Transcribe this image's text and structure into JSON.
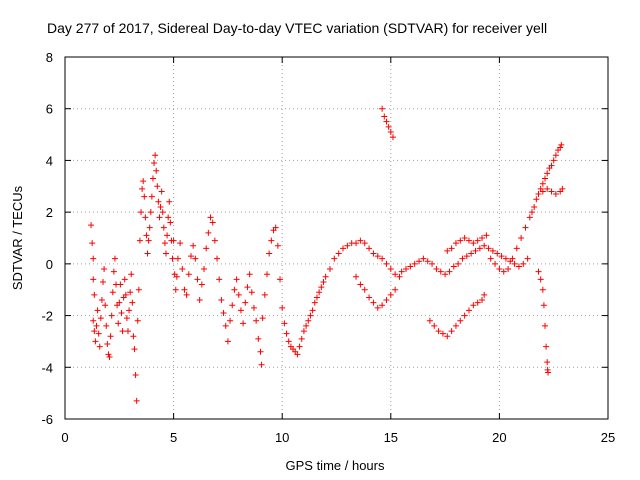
{
  "chart_data": {
    "type": "scatter",
    "title": "Day 277 of 2017, Sidereal Day-to-day VTEC variation (SDTVAR) for receiver yell",
    "xlabel": "GPS time / hours",
    "ylabel": "SDTVAR / TECUs",
    "xlim": [
      0,
      25
    ],
    "ylim": [
      -6,
      8
    ],
    "xticks": [
      0,
      5,
      10,
      15,
      20,
      25
    ],
    "yticks": [
      -6,
      -4,
      -2,
      0,
      2,
      4,
      6,
      8
    ],
    "grid": true,
    "marker": "+",
    "series_color": "#ff0000",
    "series": [
      {
        "name": "SDTVAR",
        "points": [
          [
            1.2,
            1.5
          ],
          [
            1.25,
            0.8
          ],
          [
            1.3,
            0.2
          ],
          [
            1.3,
            -0.6
          ],
          [
            1.35,
            -1.2
          ],
          [
            1.3,
            -2.2
          ],
          [
            1.35,
            -2.6
          ],
          [
            1.4,
            -3.0
          ],
          [
            1.45,
            -2.4
          ],
          [
            1.5,
            -1.8
          ],
          [
            1.55,
            -2.7
          ],
          [
            1.6,
            -3.2
          ],
          [
            1.65,
            -2.1
          ],
          [
            1.7,
            -1.4
          ],
          [
            1.75,
            -0.7
          ],
          [
            1.8,
            -0.2
          ],
          [
            1.85,
            -1.6
          ],
          [
            1.9,
            -2.4
          ],
          [
            1.95,
            -3.1
          ],
          [
            2.0,
            -3.5
          ],
          [
            2.05,
            -3.6
          ],
          [
            2.1,
            -2.8
          ],
          [
            2.15,
            -2.0
          ],
          [
            2.2,
            -1.1
          ],
          [
            2.25,
            -0.3
          ],
          [
            2.3,
            0.2
          ],
          [
            2.35,
            -0.8
          ],
          [
            2.4,
            -1.6
          ],
          [
            2.45,
            -2.3
          ],
          [
            2.5,
            -1.5
          ],
          [
            2.55,
            -0.8
          ],
          [
            2.6,
            -1.9
          ],
          [
            2.65,
            -2.6
          ],
          [
            2.7,
            -1.3
          ],
          [
            2.75,
            -0.6
          ],
          [
            2.8,
            -1.2
          ],
          [
            2.85,
            -2.1
          ],
          [
            2.9,
            -2.6
          ],
          [
            2.95,
            -1.8
          ],
          [
            3.0,
            -1.1
          ],
          [
            3.05,
            -0.4
          ],
          [
            3.1,
            -1.5
          ],
          [
            3.15,
            -2.8
          ],
          [
            3.2,
            -3.3
          ],
          [
            3.25,
            -4.3
          ],
          [
            3.3,
            -5.3
          ],
          [
            3.35,
            -2.2
          ],
          [
            3.4,
            -1.0
          ],
          [
            3.45,
            0.9
          ],
          [
            3.5,
            2.0
          ],
          [
            3.55,
            2.9
          ],
          [
            3.6,
            3.2
          ],
          [
            3.65,
            2.6
          ],
          [
            3.7,
            1.8
          ],
          [
            3.75,
            1.1
          ],
          [
            3.8,
            0.4
          ],
          [
            3.85,
            0.9
          ],
          [
            3.9,
            1.4
          ],
          [
            3.95,
            2.0
          ],
          [
            4.0,
            2.6
          ],
          [
            4.05,
            3.3
          ],
          [
            4.1,
            3.9
          ],
          [
            4.15,
            4.2
          ],
          [
            4.2,
            3.6
          ],
          [
            4.25,
            3.0
          ],
          [
            4.3,
            2.4
          ],
          [
            4.35,
            1.8
          ],
          [
            4.4,
            2.2
          ],
          [
            4.45,
            2.8
          ],
          [
            4.5,
            2.0
          ],
          [
            4.55,
            1.4
          ],
          [
            4.6,
            0.8
          ],
          [
            4.65,
            0.4
          ],
          [
            4.7,
            1.1
          ],
          [
            4.75,
            1.8
          ],
          [
            4.8,
            2.4
          ],
          [
            4.85,
            1.6
          ],
          [
            4.9,
            0.9
          ],
          [
            4.95,
            0.2
          ],
          [
            5.0,
            0.9
          ],
          [
            5.05,
            -0.4
          ],
          [
            5.1,
            -1.0
          ],
          [
            5.15,
            -0.5
          ],
          [
            5.2,
            0.2
          ],
          [
            5.3,
            0.8
          ],
          [
            5.4,
            -0.2
          ],
          [
            5.5,
            -1.0
          ],
          [
            5.6,
            -1.2
          ],
          [
            5.7,
            -0.4
          ],
          [
            5.8,
            0.3
          ],
          [
            5.9,
            0.7
          ],
          [
            6.0,
            0.2
          ],
          [
            6.1,
            -0.6
          ],
          [
            6.2,
            -1.4
          ],
          [
            6.3,
            -0.8
          ],
          [
            6.4,
            -0.2
          ],
          [
            6.5,
            0.6
          ],
          [
            6.6,
            1.2
          ],
          [
            6.7,
            1.8
          ],
          [
            6.8,
            1.6
          ],
          [
            6.9,
            0.9
          ],
          [
            7.0,
            0.2
          ],
          [
            7.1,
            -0.6
          ],
          [
            7.2,
            -1.4
          ],
          [
            7.3,
            -1.9
          ],
          [
            7.4,
            -2.4
          ],
          [
            7.5,
            -3.0
          ],
          [
            7.6,
            -2.2
          ],
          [
            7.7,
            -1.6
          ],
          [
            7.8,
            -1.0
          ],
          [
            7.9,
            -0.6
          ],
          [
            8.0,
            -1.2
          ],
          [
            8.1,
            -1.8
          ],
          [
            8.2,
            -2.3
          ],
          [
            8.3,
            -1.5
          ],
          [
            8.4,
            -0.9
          ],
          [
            8.5,
            -0.4
          ],
          [
            8.6,
            -1.1
          ],
          [
            8.7,
            -1.7
          ],
          [
            8.8,
            -2.2
          ],
          [
            8.9,
            -2.9
          ],
          [
            9.0,
            -3.4
          ],
          [
            9.05,
            -3.9
          ],
          [
            9.1,
            -2.1
          ],
          [
            9.2,
            -1.2
          ],
          [
            9.3,
            -0.4
          ],
          [
            9.4,
            0.4
          ],
          [
            9.5,
            0.9
          ],
          [
            9.6,
            1.3
          ],
          [
            9.7,
            1.4
          ],
          [
            9.8,
            0.7
          ],
          [
            9.9,
            -0.6
          ],
          [
            10.0,
            -1.7
          ],
          [
            10.1,
            -2.3
          ],
          [
            10.2,
            -2.7
          ],
          [
            10.3,
            -3.0
          ],
          [
            10.4,
            -3.2
          ],
          [
            10.5,
            -3.3
          ],
          [
            10.6,
            -3.4
          ],
          [
            10.7,
            -3.5
          ],
          [
            10.8,
            -3.2
          ],
          [
            10.9,
            -2.9
          ],
          [
            11.0,
            -2.6
          ],
          [
            11.1,
            -2.4
          ],
          [
            11.2,
            -2.2
          ],
          [
            11.3,
            -2.0
          ],
          [
            11.4,
            -1.8
          ],
          [
            11.5,
            -1.5
          ],
          [
            11.6,
            -1.3
          ],
          [
            11.7,
            -1.1
          ],
          [
            11.8,
            -0.9
          ],
          [
            11.9,
            -0.7
          ],
          [
            12.0,
            -0.5
          ],
          [
            12.2,
            -0.2
          ],
          [
            12.4,
            0.2
          ],
          [
            12.6,
            0.4
          ],
          [
            12.8,
            0.6
          ],
          [
            13.0,
            0.7
          ],
          [
            13.2,
            0.8
          ],
          [
            13.4,
            0.8
          ],
          [
            13.6,
            0.9
          ],
          [
            13.8,
            0.8
          ],
          [
            14.0,
            0.6
          ],
          [
            14.2,
            0.4
          ],
          [
            14.4,
            0.3
          ],
          [
            14.6,
            0.2
          ],
          [
            14.8,
            0.0
          ],
          [
            15.0,
            -0.2
          ],
          [
            15.2,
            -0.4
          ],
          [
            15.4,
            -0.5
          ],
          [
            13.4,
            -0.5
          ],
          [
            13.6,
            -0.8
          ],
          [
            13.8,
            -1.0
          ],
          [
            14.0,
            -1.3
          ],
          [
            14.2,
            -1.5
          ],
          [
            14.4,
            -1.7
          ],
          [
            14.6,
            -1.6
          ],
          [
            14.8,
            -1.4
          ],
          [
            15.0,
            -1.2
          ],
          [
            15.2,
            -1.0
          ],
          [
            14.6,
            6.0
          ],
          [
            14.7,
            5.7
          ],
          [
            14.8,
            5.5
          ],
          [
            14.9,
            5.3
          ],
          [
            15.0,
            5.1
          ],
          [
            15.1,
            4.9
          ],
          [
            15.5,
            -0.3
          ],
          [
            15.7,
            -0.2
          ],
          [
            15.9,
            -0.1
          ],
          [
            16.1,
            0.0
          ],
          [
            16.3,
            0.1
          ],
          [
            16.5,
            0.2
          ],
          [
            16.7,
            0.1
          ],
          [
            16.9,
            0.0
          ],
          [
            17.1,
            -0.2
          ],
          [
            17.3,
            -0.3
          ],
          [
            17.5,
            -0.4
          ],
          [
            17.7,
            -0.3
          ],
          [
            17.9,
            -0.1
          ],
          [
            18.1,
            0.0
          ],
          [
            18.3,
            0.2
          ],
          [
            18.5,
            0.3
          ],
          [
            18.7,
            0.4
          ],
          [
            18.9,
            0.5
          ],
          [
            19.1,
            0.6
          ],
          [
            19.3,
            0.7
          ],
          [
            16.8,
            -2.2
          ],
          [
            17.0,
            -2.4
          ],
          [
            17.2,
            -2.6
          ],
          [
            17.4,
            -2.7
          ],
          [
            17.6,
            -2.8
          ],
          [
            17.8,
            -2.6
          ],
          [
            18.0,
            -2.4
          ],
          [
            18.2,
            -2.2
          ],
          [
            18.4,
            -2.0
          ],
          [
            18.6,
            -1.8
          ],
          [
            18.8,
            -1.6
          ],
          [
            19.0,
            -1.5
          ],
          [
            19.2,
            -1.4
          ],
          [
            19.3,
            -1.2
          ],
          [
            17.6,
            0.5
          ],
          [
            17.8,
            0.6
          ],
          [
            18.0,
            0.8
          ],
          [
            18.2,
            0.9
          ],
          [
            18.4,
            1.0
          ],
          [
            18.6,
            0.9
          ],
          [
            18.8,
            0.8
          ],
          [
            19.0,
            0.9
          ],
          [
            19.2,
            1.0
          ],
          [
            19.4,
            1.1
          ],
          [
            19.5,
            0.6
          ],
          [
            19.7,
            0.5
          ],
          [
            19.9,
            0.4
          ],
          [
            20.1,
            0.3
          ],
          [
            20.3,
            0.2
          ],
          [
            20.5,
            0.1
          ],
          [
            20.7,
            0.0
          ],
          [
            20.9,
            -0.1
          ],
          [
            21.1,
            0.0
          ],
          [
            21.3,
            0.2
          ],
          [
            19.6,
            0.2
          ],
          [
            19.8,
            0.0
          ],
          [
            20.0,
            -0.2
          ],
          [
            20.2,
            -0.3
          ],
          [
            20.4,
            -0.2
          ],
          [
            20.6,
            0.2
          ],
          [
            20.8,
            0.6
          ],
          [
            21.0,
            1.0
          ],
          [
            21.2,
            1.4
          ],
          [
            21.4,
            1.8
          ],
          [
            21.5,
            2.0
          ],
          [
            21.6,
            2.2
          ],
          [
            21.7,
            2.5
          ],
          [
            21.8,
            2.7
          ],
          [
            21.9,
            2.9
          ],
          [
            22.0,
            3.1
          ],
          [
            22.1,
            3.3
          ],
          [
            22.2,
            3.5
          ],
          [
            22.3,
            3.7
          ],
          [
            22.4,
            3.8
          ],
          [
            22.5,
            4.0
          ],
          [
            22.6,
            4.2
          ],
          [
            22.7,
            4.4
          ],
          [
            22.8,
            4.5
          ],
          [
            22.85,
            4.6
          ],
          [
            22.0,
            2.8
          ],
          [
            22.2,
            2.9
          ],
          [
            22.4,
            2.8
          ],
          [
            22.6,
            2.7
          ],
          [
            22.8,
            2.8
          ],
          [
            22.9,
            2.9
          ],
          [
            21.8,
            -0.3
          ],
          [
            21.9,
            -0.6
          ],
          [
            22.0,
            -1.0
          ],
          [
            22.05,
            -1.6
          ],
          [
            22.1,
            -2.4
          ],
          [
            22.15,
            -3.2
          ],
          [
            22.2,
            -3.8
          ],
          [
            22.22,
            -4.1
          ],
          [
            22.24,
            -4.2
          ]
        ]
      }
    ]
  }
}
